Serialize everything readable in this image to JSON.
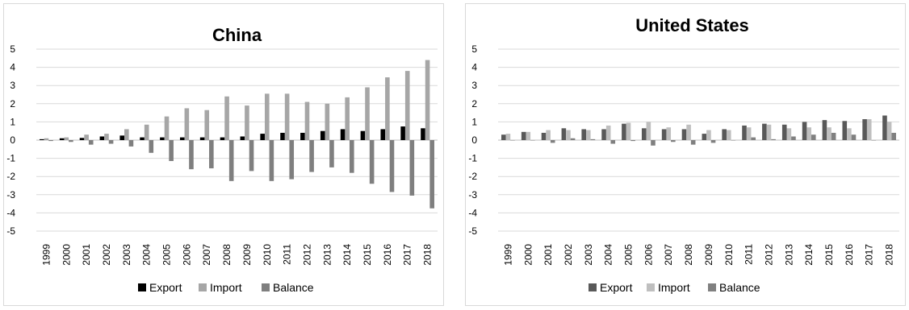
{
  "chart_data": [
    {
      "type": "bar",
      "title": "China",
      "categories": [
        "1999",
        "2000",
        "2001",
        "2002",
        "2003",
        "2004",
        "2005",
        "2006",
        "2007",
        "2008",
        "2009",
        "2010",
        "2011",
        "2012",
        "2013",
        "2014",
        "2015",
        "2016",
        "2017",
        "2018"
      ],
      "ylim": [
        -5,
        5
      ],
      "yticks": [
        "5",
        "4",
        "3",
        "2",
        "1",
        "0",
        "-1",
        "-2",
        "-3",
        "-4",
        "-5"
      ],
      "grid": true,
      "legend_position": "bottom",
      "series": [
        {
          "name": "Export",
          "color": "#000000",
          "values": [
            0.05,
            0.1,
            0.12,
            0.2,
            0.25,
            0.15,
            0.15,
            0.15,
            0.15,
            0.15,
            0.2,
            0.35,
            0.4,
            0.4,
            0.5,
            0.6,
            0.5,
            0.6,
            0.75,
            0.65
          ]
        },
        {
          "name": "Import",
          "color": "#a6a6a6",
          "values": [
            0.1,
            0.15,
            0.3,
            0.35,
            0.6,
            0.85,
            1.3,
            1.75,
            1.65,
            2.4,
            1.9,
            2.55,
            2.55,
            2.1,
            2.0,
            2.35,
            2.9,
            3.45,
            3.8,
            4.4
          ]
        },
        {
          "name": "Balance",
          "color": "#7f7f7f",
          "values": [
            -0.05,
            -0.1,
            -0.25,
            -0.2,
            -0.35,
            -0.7,
            -1.15,
            -1.6,
            -1.55,
            -2.25,
            -1.7,
            -2.25,
            -2.15,
            -1.75,
            -1.5,
            -1.8,
            -2.4,
            -2.85,
            -3.05,
            -3.75
          ]
        }
      ]
    },
    {
      "type": "bar",
      "title": "United States",
      "categories": [
        "1999",
        "2000",
        "2001",
        "2002",
        "2003",
        "2004",
        "2005",
        "2006",
        "2007",
        "2008",
        "2009",
        "2010",
        "2011",
        "2012",
        "2013",
        "2014",
        "2015",
        "2016",
        "2017",
        "2018"
      ],
      "ylim": [
        -5,
        5
      ],
      "yticks": [
        "5",
        "4",
        "3",
        "2",
        "1",
        "0",
        "-1",
        "-2",
        "-3",
        "-4",
        "-5"
      ],
      "grid": true,
      "legend_position": "bottom",
      "series": [
        {
          "name": "Export",
          "color": "#595959",
          "values": [
            0.3,
            0.45,
            0.4,
            0.65,
            0.6,
            0.6,
            0.9,
            0.65,
            0.6,
            0.6,
            0.35,
            0.6,
            0.8,
            0.9,
            0.85,
            1.0,
            1.1,
            1.05,
            1.15,
            1.35
          ]
        },
        {
          "name": "Import",
          "color": "#bfbfbf",
          "values": [
            0.35,
            0.45,
            0.55,
            0.55,
            0.55,
            0.8,
            0.95,
            1.0,
            0.7,
            0.85,
            0.55,
            0.55,
            0.7,
            0.85,
            0.65,
            0.7,
            0.7,
            0.65,
            1.15,
            1.0
          ]
        },
        {
          "name": "Balance",
          "color": "#808080",
          "values": [
            0.0,
            0.0,
            -0.15,
            0.1,
            0.05,
            -0.2,
            -0.05,
            -0.3,
            -0.1,
            -0.25,
            -0.15,
            0.0,
            0.15,
            0.05,
            0.2,
            0.3,
            0.4,
            0.3,
            0.0,
            0.4
          ]
        }
      ]
    }
  ]
}
